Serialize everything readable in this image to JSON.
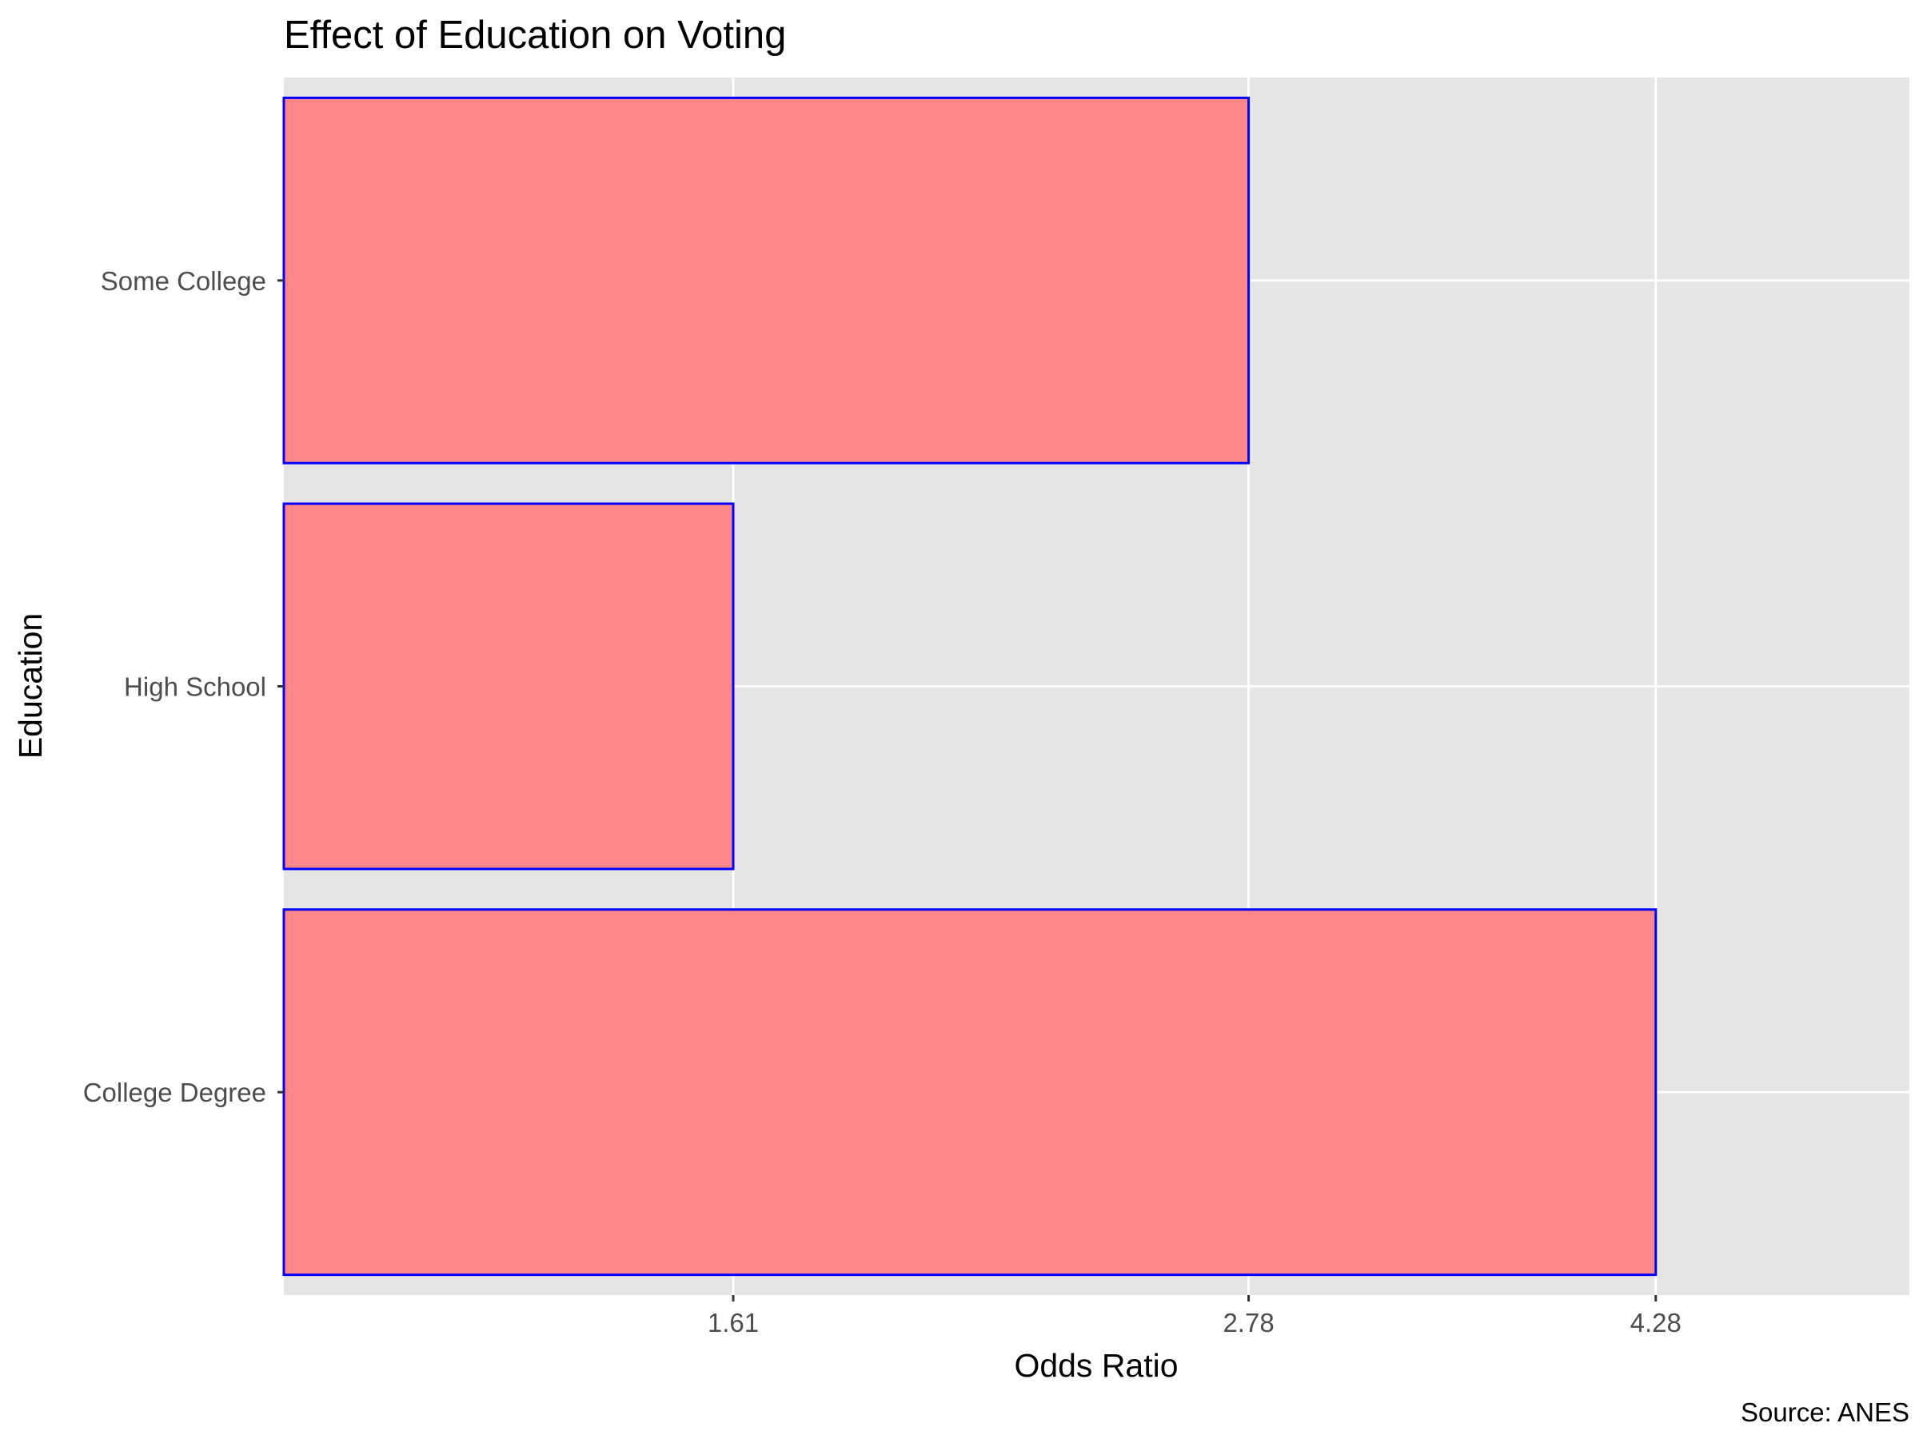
{
  "chart_data": {
    "type": "bar",
    "orientation": "horizontal",
    "title": "Effect of Education on Voting",
    "xlabel": "Odds Ratio",
    "ylabel": "Education",
    "caption": "Source: ANES",
    "categories": [
      "College Degree",
      "High School",
      "Some College"
    ],
    "values": [
      4.28,
      1.61,
      2.78
    ],
    "x_scale": "log",
    "xlim": [
      1.0,
      5.6
    ],
    "xticks": [
      1.61,
      2.78,
      4.28
    ],
    "xtick_labels": [
      "1.61",
      "2.78",
      "4.28"
    ],
    "grid": true,
    "legend": "none",
    "colors": {
      "bar_fill": "#ff8789",
      "bar_stroke": "#0000ff",
      "panel": "#e5e5e5",
      "gridline": "#ffffff",
      "text": "#4d4d4d",
      "title_text": "#000000"
    }
  }
}
